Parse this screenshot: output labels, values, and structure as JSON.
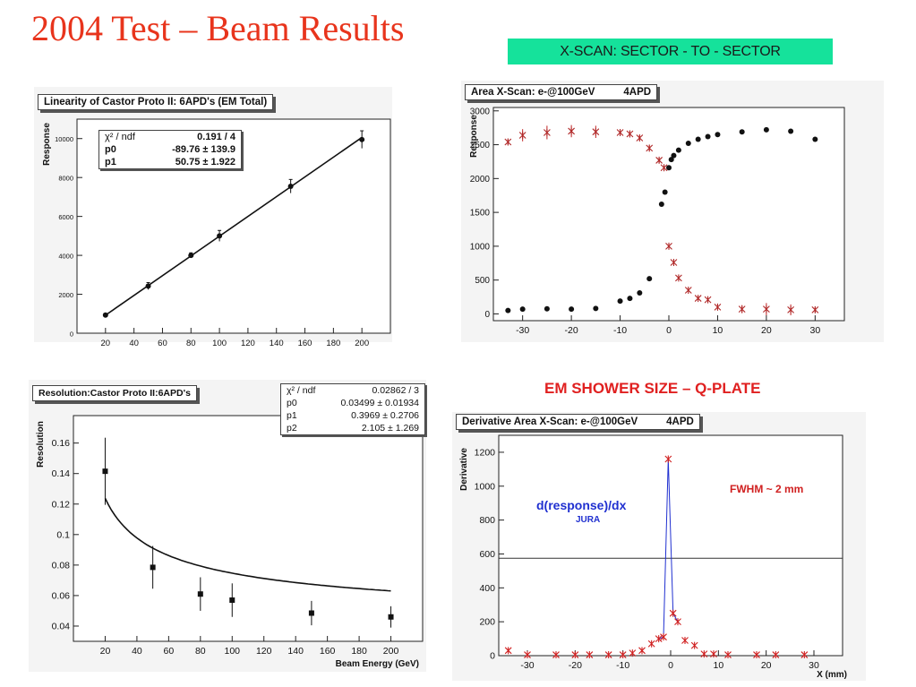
{
  "slide": {
    "title": "2004 Test – Beam Results",
    "banner": "X-SCAN: SECTOR - TO - SECTOR",
    "shower_title": "EM  SHOWER SIZE – Q-PLATE"
  },
  "colors": {
    "title_red": "#e8341c",
    "banner_green": "#15e29b",
    "blue_fit": "#2030d0",
    "red_marker": "#d02020"
  },
  "chart_data": [
    {
      "type": "scatter",
      "title": "Linearity of Castor Proto II: 6APD's (EM Total)",
      "ylabel": "Response",
      "xlabel": "",
      "xlim": [
        0,
        220
      ],
      "ylim": [
        0,
        11000
      ],
      "xticks": [
        20,
        40,
        60,
        80,
        100,
        120,
        140,
        160,
        180,
        200
      ],
      "yticks": [
        2000,
        4000,
        6000,
        8000,
        10000
      ],
      "yticks_extra": [
        0
      ],
      "fit": {
        "rows": [
          {
            "label": "χ² / ndf",
            "value": "0.191 / 4",
            "bold": true
          },
          {
            "label": "p0",
            "value": "-89.76 ± 139.9",
            "bold": true
          },
          {
            "label": "p1",
            "value": "50.75 ± 1.922",
            "bold": true
          }
        ],
        "line": {
          "p0": -89.76,
          "p1": 50.75,
          "x_from": 20,
          "x_to": 200
        }
      },
      "points": [
        {
          "x": 20,
          "y": 930,
          "err": 60
        },
        {
          "x": 50,
          "y": 2420,
          "err": 180
        },
        {
          "x": 80,
          "y": 4000,
          "err": 130
        },
        {
          "x": 100,
          "y": 5000,
          "err": 280
        },
        {
          "x": 150,
          "y": 7550,
          "err": 350
        },
        {
          "x": 200,
          "y": 9950,
          "err": 450
        }
      ]
    },
    {
      "type": "scatter",
      "title": "Area X-Scan: e-@100GeV          4APD",
      "ylabel": "Response",
      "xlabel": "",
      "xlim": [
        -36,
        36
      ],
      "ylim": [
        -100,
        3050
      ],
      "xticks": [
        -30,
        -20,
        -10,
        0,
        10,
        20,
        30
      ],
      "yticks": [
        0,
        500,
        1000,
        1500,
        2000,
        2500,
        3000
      ],
      "series": [
        {
          "marker": "dot",
          "points": [
            {
              "x": -33,
              "y": 50
            },
            {
              "x": -30,
              "y": 70
            },
            {
              "x": -25,
              "y": 75
            },
            {
              "x": -20,
              "y": 70
            },
            {
              "x": -15,
              "y": 80
            },
            {
              "x": -10,
              "y": 190
            },
            {
              "x": -8,
              "y": 230
            },
            {
              "x": -6,
              "y": 310
            },
            {
              "x": -4,
              "y": 520
            },
            {
              "x": -1.5,
              "y": 1620
            },
            {
              "x": -0.8,
              "y": 1800
            },
            {
              "x": 0,
              "y": 2160
            },
            {
              "x": 0.5,
              "y": 2280
            },
            {
              "x": 1,
              "y": 2340
            },
            {
              "x": 2,
              "y": 2420
            },
            {
              "x": 4,
              "y": 2520
            },
            {
              "x": 6,
              "y": 2580
            },
            {
              "x": 8,
              "y": 2620
            },
            {
              "x": 10,
              "y": 2650
            },
            {
              "x": 15,
              "y": 2690
            },
            {
              "x": 20,
              "y": 2720
            },
            {
              "x": 25,
              "y": 2700
            },
            {
              "x": 30,
              "y": 2580
            }
          ]
        },
        {
          "marker": "star",
          "points": [
            {
              "x": -33,
              "y": 2540,
              "err": 40
            },
            {
              "x": -30,
              "y": 2640,
              "err": 90
            },
            {
              "x": -25,
              "y": 2680,
              "err": 100
            },
            {
              "x": -20,
              "y": 2700,
              "err": 90
            },
            {
              "x": -15,
              "y": 2690,
              "err": 90
            },
            {
              "x": -10,
              "y": 2680,
              "err": 40
            },
            {
              "x": -8,
              "y": 2660,
              "err": 40
            },
            {
              "x": -6,
              "y": 2600,
              "err": 40
            },
            {
              "x": -4,
              "y": 2450,
              "err": 40
            },
            {
              "x": -2,
              "y": 2270,
              "err": 40
            },
            {
              "x": -1,
              "y": 2160,
              "err": 40
            },
            {
              "x": 0,
              "y": 1000,
              "err": 20
            },
            {
              "x": 1,
              "y": 760,
              "err": 20
            },
            {
              "x": 2,
              "y": 530,
              "err": 20
            },
            {
              "x": 4,
              "y": 350,
              "err": 20
            },
            {
              "x": 6,
              "y": 230,
              "err": 20
            },
            {
              "x": 8,
              "y": 210,
              "err": 20
            },
            {
              "x": 10,
              "y": 100,
              "err": 20
            },
            {
              "x": 15,
              "y": 70,
              "err": 60
            },
            {
              "x": 20,
              "y": 70,
              "err": 90
            },
            {
              "x": 25,
              "y": 60,
              "err": 80
            },
            {
              "x": 30,
              "y": 60,
              "err": 40
            }
          ]
        }
      ]
    },
    {
      "type": "scatter",
      "title": "Resolution:Castor Proto II:6APD's",
      "ylabel": "Resolution",
      "xlabel": "Beam Energy (GeV)",
      "xlim": [
        0,
        220
      ],
      "ylim": [
        0.03,
        0.178
      ],
      "xticks": [
        20,
        40,
        60,
        80,
        100,
        120,
        140,
        160,
        180,
        200
      ],
      "yticks": [
        0.04,
        0.06,
        0.08,
        0.1,
        0.12,
        0.14,
        0.16
      ],
      "ytick_labels": [
        "0.04",
        "0.06",
        "0.08",
        "0.1",
        "0.12",
        "0.14",
        "0.16"
      ],
      "fit": {
        "rows": [
          {
            "label": "χ² / ndf",
            "value": "0.02862 / 3",
            "bold": false
          },
          {
            "label": "p0",
            "value": "0.03499 ± 0.01934",
            "bold": false
          },
          {
            "label": "p1",
            "value": "0.3969 ± 0.2706",
            "bold": false
          },
          {
            "label": "p2",
            "value": "2.105 ± 1.269",
            "bold": false
          }
        ],
        "curve": {
          "p0": 0.03499,
          "p1": 0.3969,
          "p2": 2.105,
          "x_from": 20,
          "x_to": 200
        }
      },
      "points": [
        {
          "x": 20,
          "y": 0.1415,
          "err": 0.022
        },
        {
          "x": 50,
          "y": 0.0785,
          "err": 0.014
        },
        {
          "x": 80,
          "y": 0.061,
          "err": 0.011
        },
        {
          "x": 100,
          "y": 0.057,
          "err": 0.011
        },
        {
          "x": 150,
          "y": 0.0485,
          "err": 0.008
        },
        {
          "x": 200,
          "y": 0.046,
          "err": 0.007
        }
      ]
    },
    {
      "type": "line",
      "title": "Derivative Area X-Scan: e-@100GeV          4APD",
      "ylabel": "Derivative",
      "xlabel": "X (mm)",
      "xlim": [
        -36,
        36
      ],
      "ylim": [
        0,
        1300
      ],
      "xticks": [
        -30,
        -20,
        -10,
        0,
        10,
        20,
        30
      ],
      "yticks": [
        0,
        200,
        400,
        600,
        800,
        1000,
        1200
      ],
      "hline": 575,
      "annotations": {
        "formula": "d(response)/dx",
        "name": "JURA",
        "fwhm": "FWHM ~ 2 mm"
      },
      "points": [
        {
          "x": -34,
          "y": 30
        },
        {
          "x": -30,
          "y": 5
        },
        {
          "x": -24,
          "y": 5
        },
        {
          "x": -20,
          "y": 5
        },
        {
          "x": -17,
          "y": 5
        },
        {
          "x": -13,
          "y": 5
        },
        {
          "x": -10,
          "y": 5
        },
        {
          "x": -8,
          "y": 15
        },
        {
          "x": -6,
          "y": 30
        },
        {
          "x": -4,
          "y": 70
        },
        {
          "x": -2.5,
          "y": 100
        },
        {
          "x": -1.5,
          "y": 110
        },
        {
          "x": -0.5,
          "y": 1160
        },
        {
          "x": 0.5,
          "y": 250
        },
        {
          "x": 1.5,
          "y": 200
        },
        {
          "x": 3,
          "y": 90
        },
        {
          "x": 5,
          "y": 60
        },
        {
          "x": 7,
          "y": 10
        },
        {
          "x": 9,
          "y": 10
        },
        {
          "x": 12,
          "y": 5
        },
        {
          "x": 18,
          "y": 5
        },
        {
          "x": 22,
          "y": 5
        },
        {
          "x": 28,
          "y": 5
        }
      ],
      "line_range": [
        -3,
        2.5
      ]
    }
  ]
}
